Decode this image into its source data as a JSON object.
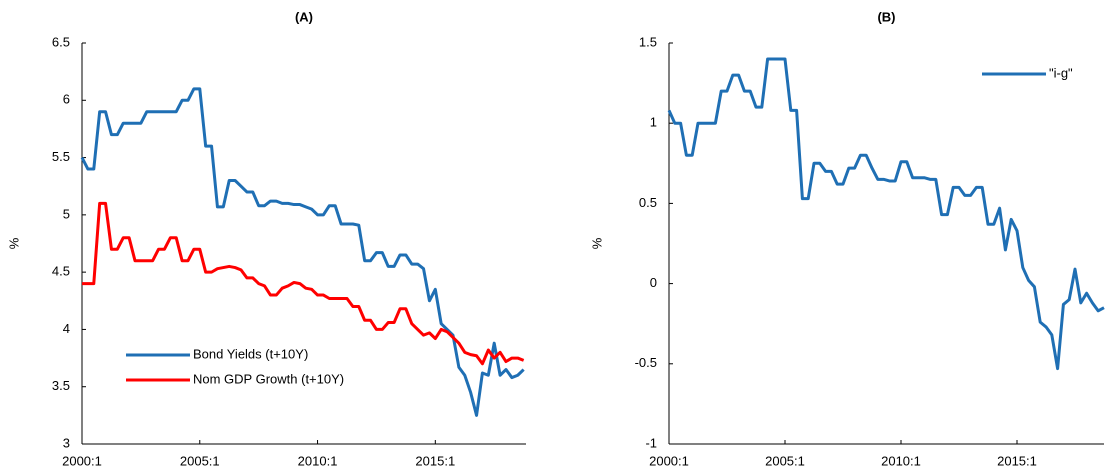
{
  "chart_data": [
    {
      "type": "line",
      "title": "(A)",
      "ylabel": "%",
      "x": [
        2000,
        2000.25,
        2000.5,
        2000.75,
        2001,
        2001.25,
        2001.5,
        2001.75,
        2002,
        2002.25,
        2002.5,
        2002.75,
        2003,
        2003.25,
        2003.5,
        2003.75,
        2004,
        2004.25,
        2004.5,
        2004.75,
        2005,
        2005.25,
        2005.5,
        2005.75,
        2006,
        2006.25,
        2006.5,
        2006.75,
        2007,
        2007.25,
        2007.5,
        2007.75,
        2008,
        2008.25,
        2008.5,
        2008.75,
        2009,
        2009.25,
        2009.5,
        2009.75,
        2010,
        2010.25,
        2010.5,
        2010.75,
        2011,
        2011.25,
        2011.5,
        2011.75,
        2012,
        2012.25,
        2012.5,
        2012.75,
        2013,
        2013.25,
        2013.5,
        2013.75,
        2014,
        2014.25,
        2014.5,
        2014.75,
        2015,
        2015.25,
        2015.5,
        2015.75,
        2016,
        2016.25,
        2016.5,
        2016.75,
        2017,
        2017.25,
        2017.5,
        2017.75,
        2018,
        2018.25,
        2018.5,
        2018.75
      ],
      "series": [
        {
          "name": "Bond Yields (t+10Y)",
          "color": "#1f6fb4",
          "values": [
            5.5,
            5.4,
            5.4,
            5.9,
            5.9,
            5.7,
            5.7,
            5.8,
            5.8,
            5.8,
            5.8,
            5.9,
            5.9,
            5.9,
            5.9,
            5.9,
            5.9,
            6.0,
            6.0,
            6.1,
            6.1,
            5.6,
            5.6,
            5.07,
            5.07,
            5.3,
            5.3,
            5.25,
            5.2,
            5.2,
            5.08,
            5.08,
            5.12,
            5.12,
            5.1,
            5.1,
            5.09,
            5.09,
            5.07,
            5.05,
            5.0,
            5.0,
            5.08,
            5.08,
            4.92,
            4.92,
            4.92,
            4.91,
            4.6,
            4.6,
            4.67,
            4.67,
            4.55,
            4.55,
            4.65,
            4.65,
            4.57,
            4.57,
            4.53,
            4.25,
            4.35,
            4.05,
            4.0,
            3.95,
            3.67,
            3.6,
            3.45,
            3.25,
            3.62,
            3.6,
            3.88,
            3.6,
            3.65,
            3.58,
            3.6,
            3.65
          ]
        },
        {
          "name": "Nom GDP Growth (t+10Y)",
          "color": "#ff0000",
          "values": [
            4.4,
            4.4,
            4.4,
            5.1,
            5.1,
            4.7,
            4.7,
            4.8,
            4.8,
            4.6,
            4.6,
            4.6,
            4.6,
            4.7,
            4.7,
            4.8,
            4.8,
            4.6,
            4.6,
            4.7,
            4.7,
            4.5,
            4.5,
            4.53,
            4.54,
            4.55,
            4.54,
            4.52,
            4.45,
            4.45,
            4.4,
            4.38,
            4.3,
            4.3,
            4.36,
            4.38,
            4.41,
            4.4,
            4.36,
            4.35,
            4.3,
            4.3,
            4.27,
            4.27,
            4.27,
            4.27,
            4.2,
            4.2,
            4.08,
            4.08,
            4.0,
            4.0,
            4.06,
            4.06,
            4.18,
            4.18,
            4.05,
            4.0,
            3.95,
            3.97,
            3.92,
            4.0,
            3.98,
            3.93,
            3.88,
            3.8,
            3.78,
            3.77,
            3.7,
            3.82,
            3.75,
            3.8,
            3.72,
            3.75,
            3.75,
            3.73
          ]
        }
      ],
      "xlim": [
        2000,
        2018.85
      ],
      "xticks": [
        {
          "value": 2000,
          "label": "2000:1"
        },
        {
          "value": 2005,
          "label": "2005:1"
        },
        {
          "value": 2010,
          "label": "2010:1"
        },
        {
          "value": 2015,
          "label": "2015:1"
        }
      ],
      "ylim": [
        3,
        6.5
      ],
      "yticks": [
        3,
        3.5,
        4,
        4.5,
        5,
        5.5,
        6,
        6.5
      ],
      "grid": false,
      "legend": "lower left"
    },
    {
      "type": "line",
      "title": "(B)",
      "ylabel": "%",
      "x": [
        2000,
        2000.25,
        2000.5,
        2000.75,
        2001,
        2001.25,
        2001.5,
        2001.75,
        2002,
        2002.25,
        2002.5,
        2002.75,
        2003,
        2003.25,
        2003.5,
        2003.75,
        2004,
        2004.25,
        2004.5,
        2004.75,
        2005,
        2005.25,
        2005.5,
        2005.75,
        2006,
        2006.25,
        2006.5,
        2006.75,
        2007,
        2007.25,
        2007.5,
        2007.75,
        2008,
        2008.25,
        2008.5,
        2008.75,
        2009,
        2009.25,
        2009.5,
        2009.75,
        2010,
        2010.25,
        2010.5,
        2010.75,
        2011,
        2011.25,
        2011.5,
        2011.75,
        2012,
        2012.25,
        2012.5,
        2012.75,
        2013,
        2013.25,
        2013.5,
        2013.75,
        2014,
        2014.25,
        2014.5,
        2014.75,
        2015,
        2015.25,
        2015.5,
        2015.75,
        2016,
        2016.25,
        2016.5,
        2016.75,
        2017,
        2017.25,
        2017.5,
        2017.75,
        2018,
        2018.25,
        2018.5,
        2018.75
      ],
      "series": [
        {
          "name": "\"i-g\"",
          "color": "#1f6fb4",
          "values": [
            1.08,
            1.0,
            1.0,
            0.8,
            0.8,
            1.0,
            1.0,
            1.0,
            1.0,
            1.2,
            1.2,
            1.3,
            1.3,
            1.2,
            1.2,
            1.1,
            1.1,
            1.4,
            1.4,
            1.4,
            1.4,
            1.08,
            1.08,
            0.53,
            0.53,
            0.75,
            0.75,
            0.7,
            0.7,
            0.62,
            0.62,
            0.72,
            0.72,
            0.8,
            0.8,
            0.72,
            0.65,
            0.65,
            0.64,
            0.64,
            0.76,
            0.76,
            0.66,
            0.66,
            0.66,
            0.65,
            0.65,
            0.43,
            0.43,
            0.6,
            0.6,
            0.55,
            0.55,
            0.6,
            0.6,
            0.37,
            0.37,
            0.47,
            0.21,
            0.4,
            0.33,
            0.1,
            0.02,
            -0.02,
            -0.24,
            -0.27,
            -0.32,
            -0.53,
            -0.13,
            -0.1,
            0.09,
            -0.12,
            -0.06,
            -0.12,
            -0.17,
            -0.15
          ]
        }
      ],
      "xlim": [
        2000,
        2018.75
      ],
      "xticks": [
        {
          "value": 2000,
          "label": "2000:1"
        },
        {
          "value": 2005,
          "label": "2005:1"
        },
        {
          "value": 2010,
          "label": "2010:1"
        },
        {
          "value": 2015,
          "label": "2015:1"
        }
      ],
      "ylim": [
        -1,
        1.5
      ],
      "yticks": [
        -1,
        -0.5,
        0,
        0.5,
        1,
        1.5
      ],
      "grid": false,
      "legend": "upper right"
    }
  ]
}
